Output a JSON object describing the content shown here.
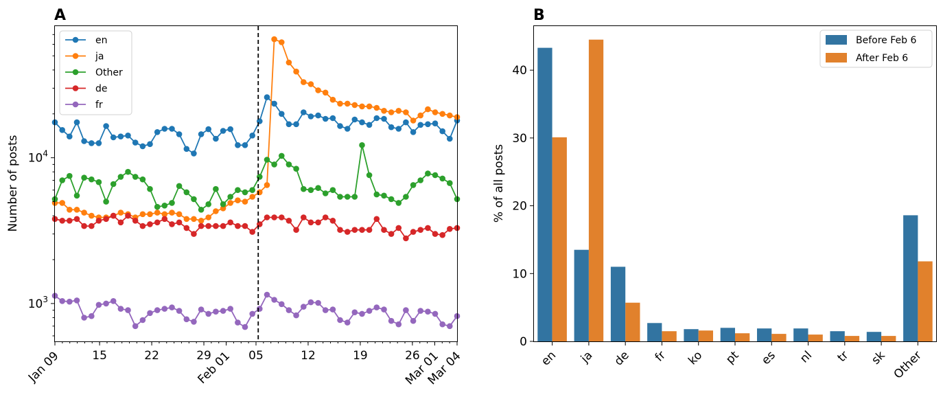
{
  "chart_data": [
    {
      "panel": "A",
      "type": "line",
      "title": "",
      "xlabel": "",
      "ylabel": "Number of posts",
      "yscale": "log",
      "ylim": [
        550,
        80000
      ],
      "y_ticks": [
        {
          "value": 1000,
          "label": "10^3"
        },
        {
          "value": 10000,
          "label": "10^4"
        }
      ],
      "x_ticks": [
        {
          "day": 0,
          "label": "Jan 09"
        },
        {
          "day": 6,
          "label": "15"
        },
        {
          "day": 13,
          "label": "22"
        },
        {
          "day": 20,
          "label": "29"
        },
        {
          "day": 23,
          "label": "Feb 01"
        },
        {
          "day": 27,
          "label": "05"
        },
        {
          "day": 34,
          "label": "12"
        },
        {
          "day": 41,
          "label": "19"
        },
        {
          "day": 48,
          "label": "26"
        },
        {
          "day": 51,
          "label": "Mar 01"
        },
        {
          "day": 54,
          "label": "Mar 04"
        }
      ],
      "x_range_days": [
        0,
        54
      ],
      "marker_day": 27.3,
      "marker_label": "Feb 6",
      "legend": [
        "en",
        "ja",
        "Other",
        "de",
        "fr"
      ],
      "series": [
        {
          "name": "en",
          "color": "#1f77b4",
          "values": [
            17500,
            15500,
            14000,
            17500,
            13000,
            12600,
            12600,
            16500,
            13800,
            14000,
            14200,
            12700,
            12000,
            12400,
            15000,
            15800,
            15800,
            14500,
            11500,
            10700,
            14500,
            15700,
            13500,
            15300,
            15700,
            12200,
            12200,
            14200,
            17800,
            26000,
            23500,
            20000,
            17000,
            17000,
            20500,
            19200,
            19500,
            18500,
            18700,
            16500,
            15800,
            18300,
            17500,
            16800,
            18700,
            18500,
            16200,
            15800,
            17500,
            15000,
            16800,
            17000,
            17200,
            15200,
            13500,
            18000
          ]
        },
        {
          "name": "ja",
          "color": "#ff7f0e",
          "values": [
            4900,
            4900,
            4400,
            4400,
            4200,
            4000,
            3900,
            3900,
            4000,
            4200,
            4100,
            3900,
            4100,
            4100,
            4200,
            4100,
            4200,
            4100,
            3800,
            3800,
            3700,
            3900,
            4300,
            4500,
            4900,
            5100,
            5000,
            5400,
            5800,
            6500,
            65000,
            62000,
            45000,
            39000,
            33000,
            32000,
            29000,
            28000,
            25000,
            23500,
            23500,
            23000,
            22500,
            22500,
            22000,
            21000,
            20500,
            21000,
            20500,
            18000,
            19500,
            21500,
            20500,
            20000,
            19500,
            19000
          ]
        },
        {
          "name": "Other",
          "color": "#2ca02c",
          "values": [
            5200,
            7000,
            7500,
            5500,
            7300,
            7100,
            6800,
            5000,
            6600,
            7400,
            8000,
            7400,
            7100,
            6100,
            4600,
            4700,
            4900,
            6400,
            5800,
            5200,
            4400,
            4800,
            6100,
            4800,
            5400,
            6000,
            5800,
            6000,
            7400,
            9700,
            9000,
            10300,
            9000,
            8400,
            6100,
            6000,
            6200,
            5700,
            6000,
            5400,
            5400,
            5400,
            12200,
            7600,
            5600,
            5500,
            5200,
            4900,
            5400,
            6500,
            7000,
            7800,
            7600,
            7200,
            6700,
            5200
          ]
        },
        {
          "name": "de",
          "color": "#d62728",
          "values": [
            3800,
            3700,
            3700,
            3800,
            3400,
            3400,
            3700,
            3800,
            4000,
            3600,
            4000,
            3700,
            3400,
            3500,
            3600,
            3800,
            3500,
            3600,
            3300,
            3000,
            3400,
            3400,
            3400,
            3400,
            3600,
            3400,
            3400,
            3100,
            3500,
            3900,
            3900,
            3900,
            3700,
            3200,
            3900,
            3600,
            3600,
            3900,
            3700,
            3200,
            3100,
            3200,
            3200,
            3200,
            3800,
            3200,
            3000,
            3300,
            2800,
            3100,
            3200,
            3300,
            3000,
            2950,
            3250,
            3300
          ]
        },
        {
          "name": "fr",
          "color": "#9467bd",
          "values": [
            1130,
            1040,
            1030,
            1050,
            800,
            820,
            980,
            1000,
            1040,
            920,
            900,
            700,
            770,
            860,
            900,
            920,
            940,
            890,
            780,
            750,
            910,
            850,
            880,
            890,
            920,
            740,
            690,
            850,
            920,
            1150,
            1060,
            990,
            900,
            830,
            950,
            1020,
            1010,
            900,
            910,
            770,
            740,
            870,
            850,
            890,
            940,
            910,
            760,
            720,
            900,
            760,
            890,
            880,
            850,
            720,
            700,
            820
          ]
        }
      ]
    },
    {
      "panel": "B",
      "type": "bar",
      "title": "",
      "xlabel": "",
      "ylabel": "% of all posts",
      "ylim": [
        0,
        46.5
      ],
      "y_ticks": [
        0,
        10,
        20,
        30,
        40
      ],
      "categories": [
        "en",
        "ja",
        "de",
        "fr",
        "ko",
        "pt",
        "es",
        "nl",
        "tr",
        "sk",
        "Other"
      ],
      "series": [
        {
          "name": "Before Feb 6",
          "color": "#3274a1",
          "values": [
            43.3,
            13.5,
            11.0,
            2.7,
            1.8,
            2.0,
            1.9,
            1.9,
            1.5,
            1.4,
            18.6
          ]
        },
        {
          "name": "After Feb 6",
          "color": "#e1812c",
          "values": [
            30.1,
            44.5,
            5.7,
            1.5,
            1.6,
            1.2,
            1.1,
            1.0,
            0.8,
            0.8,
            11.8
          ]
        }
      ],
      "legend": [
        "Before Feb 6",
        "After Feb 6"
      ]
    }
  ]
}
